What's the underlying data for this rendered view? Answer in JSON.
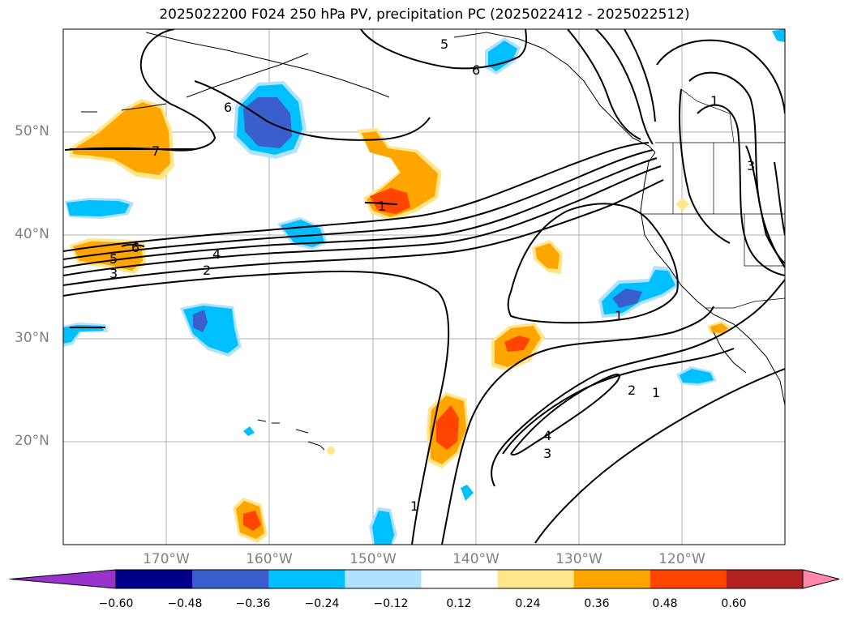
{
  "title": "2025022200 F024 250 hPa PV, precipitation PC (2025022412 - 2025022512)",
  "lat_labels": [
    "50°N",
    "40°N",
    "30°N",
    "20°N"
  ],
  "lon_labels": [
    "170°W",
    "160°W",
    "150°W",
    "140°W",
    "130°W",
    "120°W"
  ],
  "colorbar": {
    "ticks": [
      "−0.60",
      "−0.48",
      "−0.36",
      "−0.24",
      "−0.12",
      "0.12",
      "0.24",
      "0.36",
      "0.48",
      "0.60"
    ],
    "colors": [
      "#9932cc",
      "#00008b",
      "#3a5fcd",
      "#00bfff",
      "#b0e2ff",
      "#ffffff",
      "#ffe68a",
      "#ffa500",
      "#ff4500",
      "#b22222",
      "#ff88aa"
    ]
  },
  "contour_labels": [
    "5",
    "6",
    "6",
    "7",
    "1",
    "1",
    "3",
    "6",
    "5",
    "3",
    "4",
    "2",
    "1",
    "2",
    "1",
    "4",
    "3",
    "1"
  ]
}
